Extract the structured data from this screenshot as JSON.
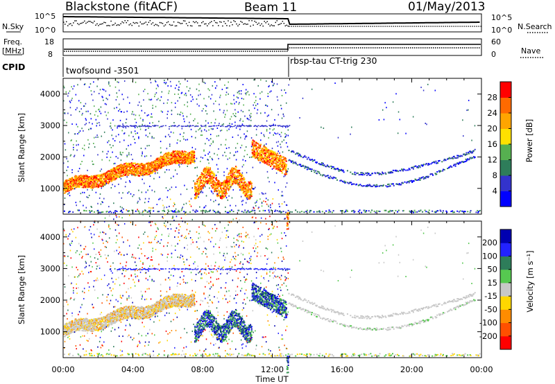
{
  "header": {
    "title": "Blackstone (fitACF)",
    "beam": "Beam 11",
    "date": "01/May/2013"
  },
  "panels": {
    "nsky_label": "N.Sky",
    "nsky_ticks": [
      "10^5",
      "10^0"
    ],
    "nsearch_label": "N.Search",
    "nsearch_ticks": [
      "10^5",
      "10^0"
    ],
    "freq_label_line1": "Freq.",
    "freq_label_line2": "[MHz]",
    "freq_ticks": [
      "18",
      "8"
    ],
    "nave_label": "Nave",
    "nave_ticks": [
      "60",
      "0"
    ],
    "cpid_label": "CPID",
    "cpid_modes": [
      "twofsound -3501",
      "rbsp-tau CT-trig 230"
    ]
  },
  "colors": {
    "power": [
      "#0000ff",
      "#3333cc",
      "#2e7d5a",
      "#56b050",
      "#ffe100",
      "#ffa500",
      "#ff6a00",
      "#ff0000"
    ],
    "velocity": [
      "#0000b0",
      "#2222ff",
      "#2e7d5a",
      "#56c850",
      "#c8c8c8",
      "#ffd700",
      "#ff8c00",
      "#ff5000",
      "#ff0000"
    ]
  },
  "chart_data": [
    {
      "type": "heatmap",
      "title": "Power",
      "ylabel": "Slant Range [km]",
      "xlabel": "",
      "xlim": [
        "00:00",
        "00:00"
      ],
      "x_ticks": [
        "00:00",
        "04:00",
        "08:00",
        "12:00",
        "16:00",
        "20:00",
        "00:00"
      ],
      "ylim": [
        180,
        4500
      ],
      "y_ticks": [
        1000,
        2000,
        3000,
        4000
      ],
      "colorbar": {
        "label": "Power [dB]",
        "ticks": [
          4,
          8,
          12,
          16,
          20,
          24,
          28
        ]
      },
      "features": [
        {
          "start_hour": 0.0,
          "end_hour": 7.5,
          "range_start_km": 1050,
          "range_end_km": 2100,
          "value": "high"
        },
        {
          "start_hour": 7.5,
          "end_hour": 10.8,
          "range_start_km": 1000,
          "range_end_km": 1200,
          "value": "high"
        },
        {
          "start_hour": 10.8,
          "end_hour": 12.8,
          "range_start_km": 2300,
          "range_end_km": 1700,
          "value": "high"
        },
        {
          "start_hour": 13.0,
          "end_hour": 23.0,
          "range_start_km": 2000,
          "range_end_km": 1750,
          "value": "low"
        }
      ]
    },
    {
      "type": "heatmap",
      "title": "Velocity",
      "ylabel": "Slant Range [km]",
      "xlabel": "Time UT",
      "xlim": [
        "00:00",
        "00:00"
      ],
      "x_ticks": [
        "00:00",
        "04:00",
        "08:00",
        "12:00",
        "16:00",
        "20:00",
        "00:00"
      ],
      "ylim": [
        180,
        4500
      ],
      "y_ticks": [
        1000,
        2000,
        3000,
        4000
      ],
      "colorbar": {
        "label": "Velocity [m s⁻¹]",
        "ticks": [
          200,
          100,
          50,
          15,
          -15,
          -50,
          -100,
          -200
        ]
      },
      "features": [
        {
          "start_hour": 0.0,
          "end_hour": 7.5,
          "range_start_km": 1050,
          "range_end_km": 2100,
          "value": "-15 to 15"
        },
        {
          "start_hour": 7.5,
          "end_hour": 10.8,
          "range_start_km": 1000,
          "range_end_km": 1200,
          "value": "100 to 200"
        },
        {
          "start_hour": 13.0,
          "end_hour": 23.0,
          "range_start_km": 2000,
          "range_end_km": 1750,
          "value": "-15 to 15"
        }
      ]
    }
  ]
}
